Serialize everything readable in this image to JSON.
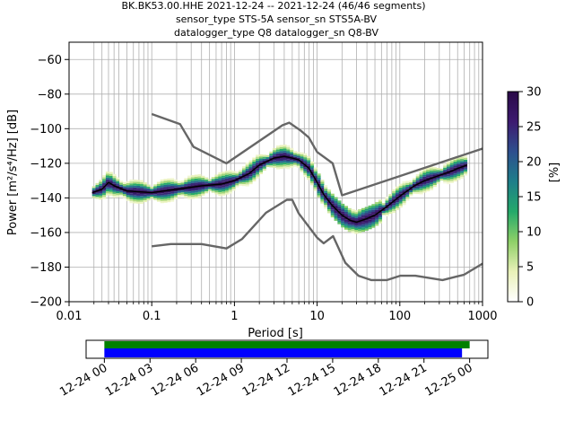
{
  "chart_data": [
    {
      "type": "heatmap",
      "title": [
        "BK.BK53.00.HHE   2021-12-24 -- 2021-12-24  (46/46 segments)",
        "sensor_type STS-5A sensor_sn STS5A-BV",
        "datalogger_type Q8 datalogger_sn Q8-BV"
      ],
      "xlabel": "Period [s]",
      "ylabel": "Power [m²/s⁴/Hz] [dB]",
      "xscale": "log",
      "xlim": [
        0.01,
        1000
      ],
      "ylim": [
        -200,
        -50
      ],
      "xticks": [
        {
          "v": 0.01,
          "l": "0.01"
        },
        {
          "v": 0.1,
          "l": "0.1"
        },
        {
          "v": 1,
          "l": "1"
        },
        {
          "v": 10,
          "l": "10"
        },
        {
          "v": 100,
          "l": "100"
        },
        {
          "v": 1000,
          "l": "1000"
        }
      ],
      "yticks": [
        -200,
        -180,
        -160,
        -140,
        -120,
        -100,
        -80,
        -60
      ],
      "grid": true,
      "colorbar": {
        "label": "[%]",
        "range": [
          0,
          30
        ],
        "ticks": [
          0,
          5,
          10,
          15,
          20,
          25,
          30
        ],
        "colors": [
          "#ffffff",
          "#e9f1b8",
          "#8fd068",
          "#24a96a",
          "#1e7e8a",
          "#2d4f8e",
          "#3d1a70",
          "#2a0a47"
        ]
      },
      "mean_curve": {
        "x": [
          0.019,
          0.025,
          0.03,
          0.035,
          0.05,
          0.1,
          0.2,
          0.4,
          0.7,
          1.0,
          1.5,
          2.0,
          3.0,
          4.0,
          5.0,
          6.0,
          8.0,
          10.0,
          12.0,
          15.0,
          20.0,
          25.0,
          30.0,
          40.0,
          50.0,
          70.0,
          100.0,
          150.0,
          200.0,
          300.0,
          400.0,
          500.0,
          650.0
        ],
        "y": [
          -137,
          -135,
          -131,
          -133,
          -136,
          -137,
          -135,
          -133,
          -132,
          -130,
          -126,
          -121,
          -117,
          -116,
          -117,
          -118,
          -123,
          -131,
          -138,
          -144,
          -150,
          -153,
          -154,
          -152,
          -150,
          -145,
          -139,
          -133,
          -130,
          -127,
          -125,
          -123,
          -121
        ]
      },
      "noise_models": [
        {
          "x": [
            0.1,
            0.22,
            0.32,
            0.8,
            3.8,
            4.6,
            6.3,
            7.9,
            10.0,
            15.4,
            20.0,
            1000.0
          ],
          "y": [
            -91.5,
            -97.4,
            -110.5,
            -120.0,
            -98.0,
            -96.5,
            -101.0,
            -105.0,
            -113.5,
            -120.0,
            -138.5,
            -111.5
          ]
        },
        {
          "x": [
            0.1,
            0.17,
            0.4,
            0.8,
            1.24,
            2.4,
            4.3,
            5.0,
            6.0,
            10.0,
            12.0,
            15.6,
            21.9,
            31.6,
            45.0,
            70.0,
            101.0,
            154.0,
            328.0,
            600.0,
            1000.0
          ],
          "y": [
            -168.0,
            -166.7,
            -166.7,
            -169.2,
            -163.7,
            -148.6,
            -141.1,
            -141.1,
            -149.0,
            -163.0,
            -166.2,
            -162.1,
            -177.5,
            -185.0,
            -187.5,
            -187.5,
            -185.0,
            -185.0,
            -187.5,
            -184.4,
            -178.0
          ]
        }
      ],
      "grid_periods": [
        0.02,
        0.025,
        0.03,
        0.035,
        0.04,
        0.05,
        0.06,
        0.07,
        0.08,
        0.09,
        0.1,
        0.2,
        0.3,
        0.4,
        0.5,
        0.6,
        0.7,
        0.8,
        0.9,
        1,
        2,
        3,
        4,
        5,
        6,
        7,
        8,
        9,
        10,
        20,
        30,
        40,
        50,
        60,
        70,
        80,
        90,
        100,
        200,
        300,
        400,
        500,
        600,
        700,
        800,
        900
      ]
    },
    {
      "type": "bar",
      "xticks": [
        "12-24 00",
        "12-24 03",
        "12-24 06",
        "12-24 09",
        "12-24 12",
        "12-24 15",
        "12-24 18",
        "12-24 21",
        "12-25 00"
      ],
      "xlim_hours": [
        -1.2,
        25.2
      ],
      "series": [
        {
          "color": "#008000",
          "start_hours": 0.0,
          "end_hours": 24.0
        },
        {
          "color": "#0000ff",
          "start_hours": 0.0,
          "end_hours": 23.5
        }
      ]
    }
  ]
}
